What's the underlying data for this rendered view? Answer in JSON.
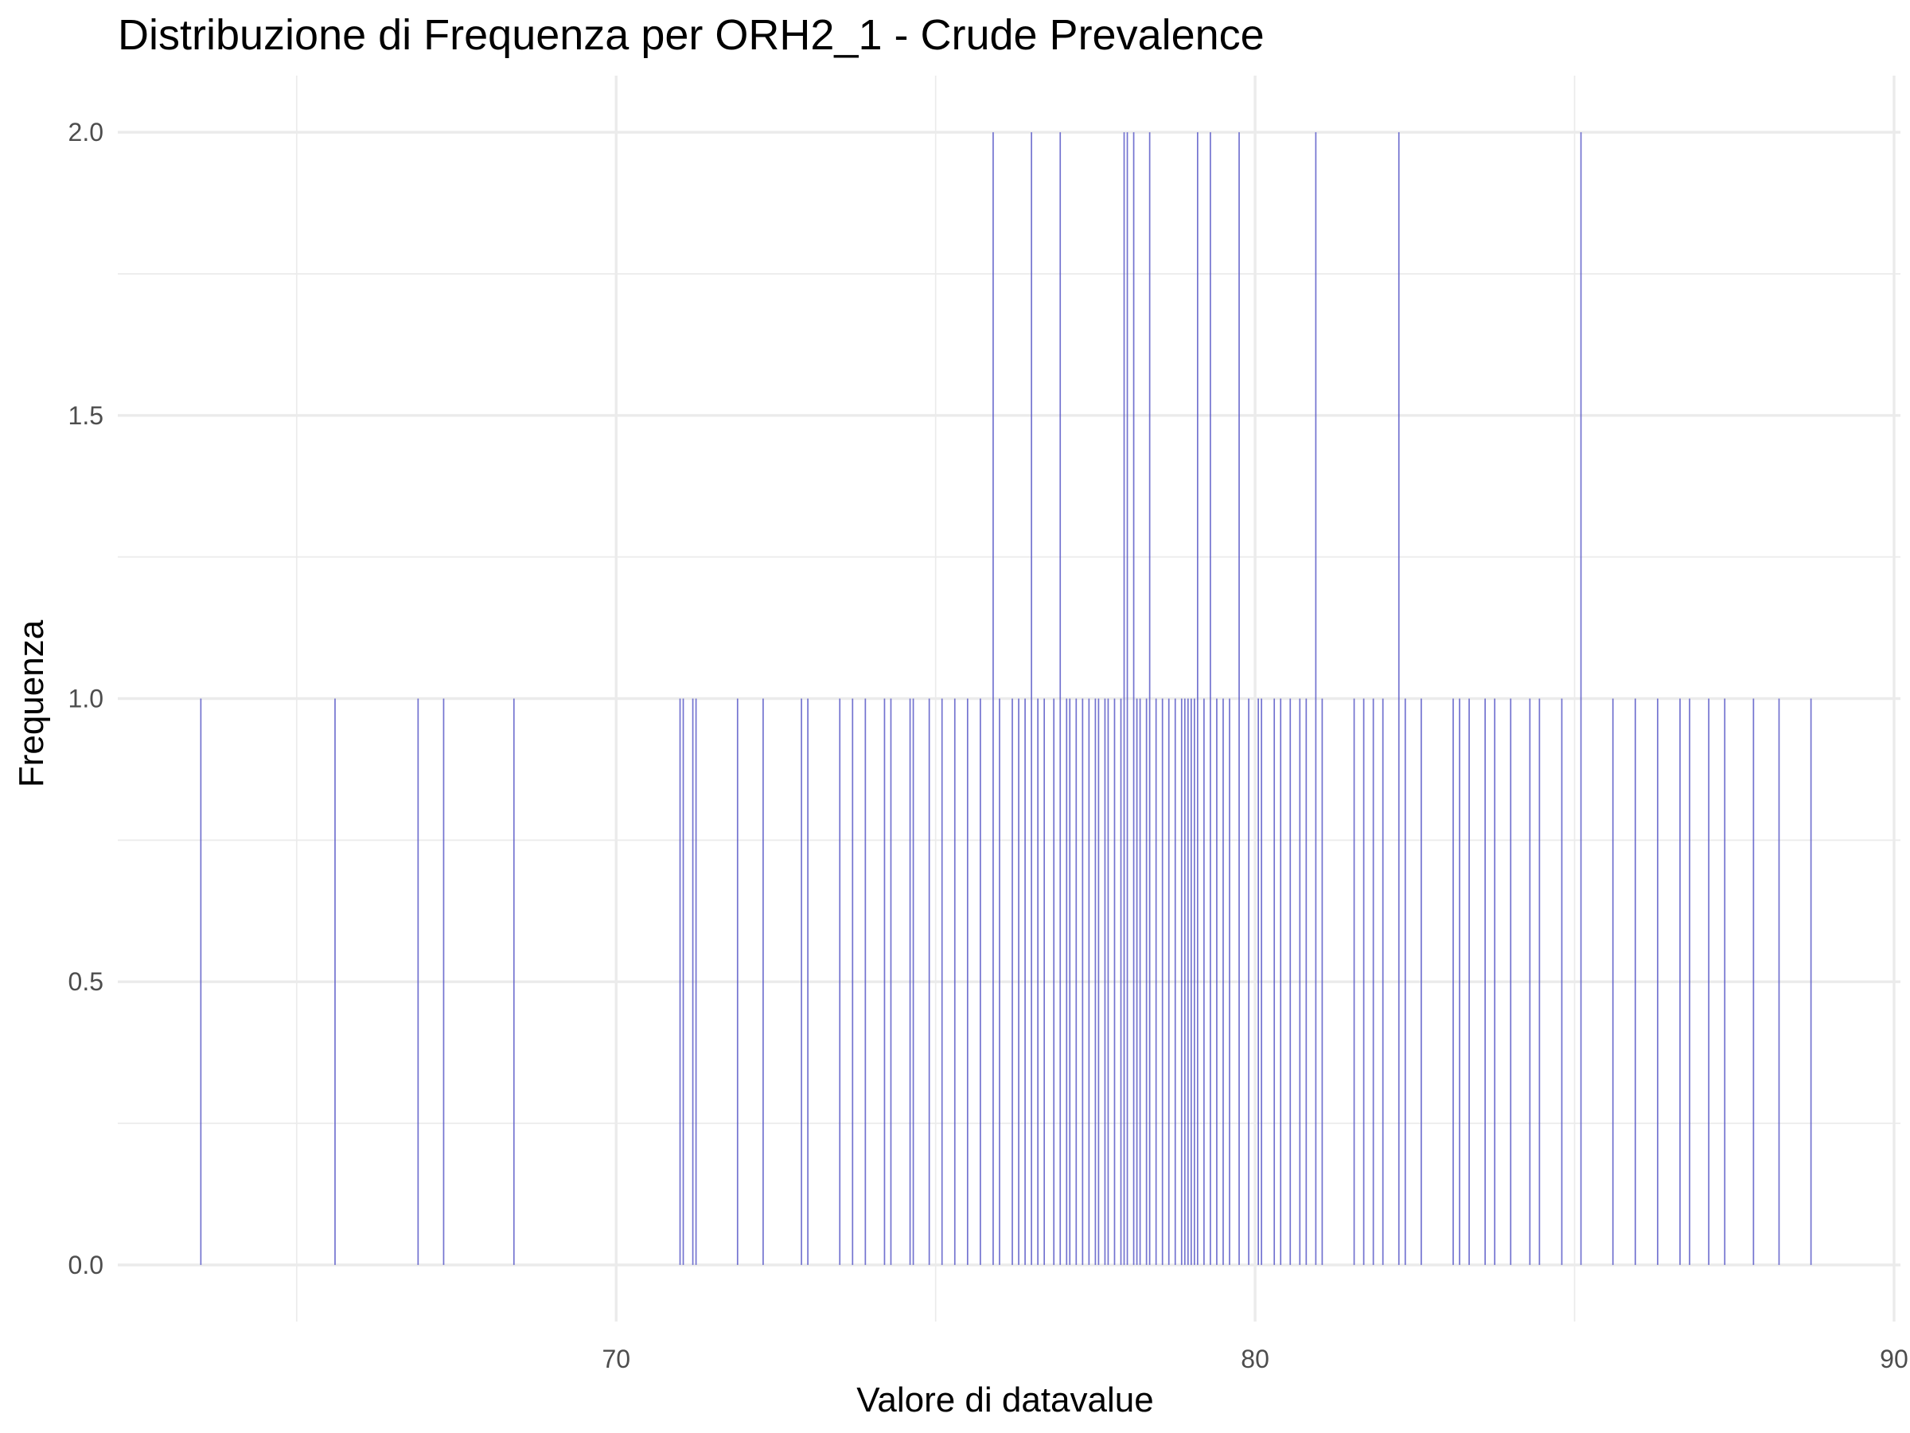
{
  "chart_data": {
    "type": "bar",
    "title": "Distribuzione di Frequenza per ORH2_1 - Crude Prevalence",
    "xlabel": "Valore di datavalue",
    "ylabel": "Frequenza",
    "xlim": [
      62.2,
      90.1
    ],
    "ylim": [
      -0.1,
      2.1
    ],
    "x_major_ticks": [
      70,
      80,
      90
    ],
    "x_minor_ticks": [
      65,
      75,
      85
    ],
    "y_major_ticks": [
      0.0,
      0.5,
      1.0,
      1.5,
      2.0
    ],
    "y_minor_ticks": [
      0.25,
      0.75,
      1.25,
      1.75
    ],
    "x_tick_labels": [
      "70",
      "80",
      "90"
    ],
    "y_tick_labels": [
      "0.0",
      "0.5",
      "1.0",
      "1.5",
      "2.0"
    ],
    "grid": true,
    "legend": "none",
    "bar_color": "#5b5bc8",
    "points": [
      {
        "x": 63.5,
        "y": 1
      },
      {
        "x": 65.6,
        "y": 1
      },
      {
        "x": 66.9,
        "y": 1
      },
      {
        "x": 67.3,
        "y": 1
      },
      {
        "x": 68.4,
        "y": 1
      },
      {
        "x": 71.0,
        "y": 1
      },
      {
        "x": 71.05,
        "y": 1
      },
      {
        "x": 71.2,
        "y": 1
      },
      {
        "x": 71.25,
        "y": 1
      },
      {
        "x": 71.9,
        "y": 1
      },
      {
        "x": 72.3,
        "y": 1
      },
      {
        "x": 72.9,
        "y": 1
      },
      {
        "x": 73.0,
        "y": 1
      },
      {
        "x": 73.5,
        "y": 1
      },
      {
        "x": 73.7,
        "y": 1
      },
      {
        "x": 73.9,
        "y": 1
      },
      {
        "x": 74.2,
        "y": 1
      },
      {
        "x": 74.3,
        "y": 1
      },
      {
        "x": 74.6,
        "y": 1
      },
      {
        "x": 74.65,
        "y": 1
      },
      {
        "x": 74.9,
        "y": 1
      },
      {
        "x": 75.1,
        "y": 1
      },
      {
        "x": 75.3,
        "y": 1
      },
      {
        "x": 75.5,
        "y": 1
      },
      {
        "x": 75.7,
        "y": 1
      },
      {
        "x": 75.9,
        "y": 2
      },
      {
        "x": 76.0,
        "y": 1
      },
      {
        "x": 76.2,
        "y": 1
      },
      {
        "x": 76.3,
        "y": 1
      },
      {
        "x": 76.4,
        "y": 1
      },
      {
        "x": 76.5,
        "y": 2
      },
      {
        "x": 76.6,
        "y": 1
      },
      {
        "x": 76.7,
        "y": 1
      },
      {
        "x": 76.85,
        "y": 1
      },
      {
        "x": 76.95,
        "y": 2
      },
      {
        "x": 77.05,
        "y": 1
      },
      {
        "x": 77.1,
        "y": 1
      },
      {
        "x": 77.2,
        "y": 1
      },
      {
        "x": 77.3,
        "y": 1
      },
      {
        "x": 77.4,
        "y": 1
      },
      {
        "x": 77.5,
        "y": 1
      },
      {
        "x": 77.55,
        "y": 1
      },
      {
        "x": 77.65,
        "y": 1
      },
      {
        "x": 77.7,
        "y": 1
      },
      {
        "x": 77.8,
        "y": 1
      },
      {
        "x": 77.9,
        "y": 1
      },
      {
        "x": 77.95,
        "y": 2
      },
      {
        "x": 78.0,
        "y": 2
      },
      {
        "x": 78.1,
        "y": 2
      },
      {
        "x": 78.15,
        "y": 1
      },
      {
        "x": 78.2,
        "y": 1
      },
      {
        "x": 78.3,
        "y": 1
      },
      {
        "x": 78.35,
        "y": 2
      },
      {
        "x": 78.45,
        "y": 1
      },
      {
        "x": 78.55,
        "y": 1
      },
      {
        "x": 78.65,
        "y": 1
      },
      {
        "x": 78.75,
        "y": 1
      },
      {
        "x": 78.85,
        "y": 1
      },
      {
        "x": 78.9,
        "y": 1
      },
      {
        "x": 78.95,
        "y": 1
      },
      {
        "x": 79.0,
        "y": 1
      },
      {
        "x": 79.05,
        "y": 1
      },
      {
        "x": 79.1,
        "y": 2
      },
      {
        "x": 79.2,
        "y": 1
      },
      {
        "x": 79.3,
        "y": 2
      },
      {
        "x": 79.4,
        "y": 1
      },
      {
        "x": 79.5,
        "y": 1
      },
      {
        "x": 79.6,
        "y": 1
      },
      {
        "x": 79.75,
        "y": 2
      },
      {
        "x": 79.9,
        "y": 1
      },
      {
        "x": 80.05,
        "y": 1
      },
      {
        "x": 80.1,
        "y": 1
      },
      {
        "x": 80.3,
        "y": 1
      },
      {
        "x": 80.4,
        "y": 1
      },
      {
        "x": 80.55,
        "y": 1
      },
      {
        "x": 80.7,
        "y": 1
      },
      {
        "x": 80.8,
        "y": 1
      },
      {
        "x": 80.95,
        "y": 2
      },
      {
        "x": 81.05,
        "y": 1
      },
      {
        "x": 81.55,
        "y": 1
      },
      {
        "x": 81.7,
        "y": 1
      },
      {
        "x": 81.85,
        "y": 1
      },
      {
        "x": 82.0,
        "y": 1
      },
      {
        "x": 82.25,
        "y": 2
      },
      {
        "x": 82.35,
        "y": 1
      },
      {
        "x": 82.6,
        "y": 1
      },
      {
        "x": 83.1,
        "y": 1
      },
      {
        "x": 83.2,
        "y": 1
      },
      {
        "x": 83.35,
        "y": 1
      },
      {
        "x": 83.6,
        "y": 1
      },
      {
        "x": 83.75,
        "y": 1
      },
      {
        "x": 84.0,
        "y": 1
      },
      {
        "x": 84.3,
        "y": 1
      },
      {
        "x": 84.45,
        "y": 1
      },
      {
        "x": 84.8,
        "y": 1
      },
      {
        "x": 85.1,
        "y": 2
      },
      {
        "x": 85.6,
        "y": 1
      },
      {
        "x": 85.95,
        "y": 1
      },
      {
        "x": 86.3,
        "y": 1
      },
      {
        "x": 86.65,
        "y": 1
      },
      {
        "x": 86.8,
        "y": 1
      },
      {
        "x": 87.1,
        "y": 1
      },
      {
        "x": 87.35,
        "y": 1
      },
      {
        "x": 87.8,
        "y": 1
      },
      {
        "x": 88.2,
        "y": 1
      },
      {
        "x": 88.7,
        "y": 1
      }
    ]
  }
}
